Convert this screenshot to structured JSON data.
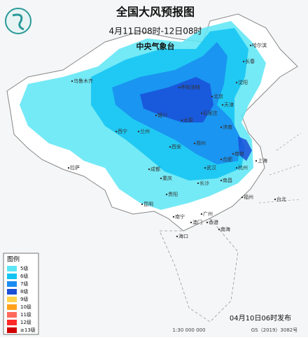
{
  "header": {
    "title": "全国大风预报图",
    "subtitle": "4月11日08时-12日08时",
    "agency": "中央气象台"
  },
  "legend": {
    "title": "图例",
    "items": [
      {
        "label": "5级",
        "color": "#5ce6f5"
      },
      {
        "label": "6级",
        "color": "#12c3f2"
      },
      {
        "label": "7级",
        "color": "#1a8cf0"
      },
      {
        "label": "8级",
        "color": "#1a4fd8"
      },
      {
        "label": "9级",
        "color": "#ffd34d"
      },
      {
        "label": "10级",
        "color": "#ffa21a"
      },
      {
        "label": "11级",
        "color": "#ff6a5c"
      },
      {
        "label": "12级",
        "color": "#ff2a2a"
      },
      {
        "label": "≥13级",
        "color": "#d00000"
      }
    ]
  },
  "cities": [
    "乌鲁木齐",
    "哈尔滨",
    "长春",
    "沈阳",
    "呼和浩特",
    "北京",
    "天津",
    "石家庄",
    "太原",
    "济南",
    "银川",
    "西宁",
    "兰州",
    "西安",
    "郑州",
    "南京",
    "合肥",
    "上海",
    "武汉",
    "杭州",
    "拉萨",
    "成都",
    "重庆",
    "长沙",
    "南昌",
    "贵阳",
    "昆明",
    "福州",
    "台北",
    "广州",
    "南宁",
    "香港",
    "澳门",
    "海口",
    "南海"
  ],
  "footer": {
    "issued": "04月10日06时发布",
    "scale": "1:30 000 000",
    "approval": "GS（2019）3082号"
  }
}
